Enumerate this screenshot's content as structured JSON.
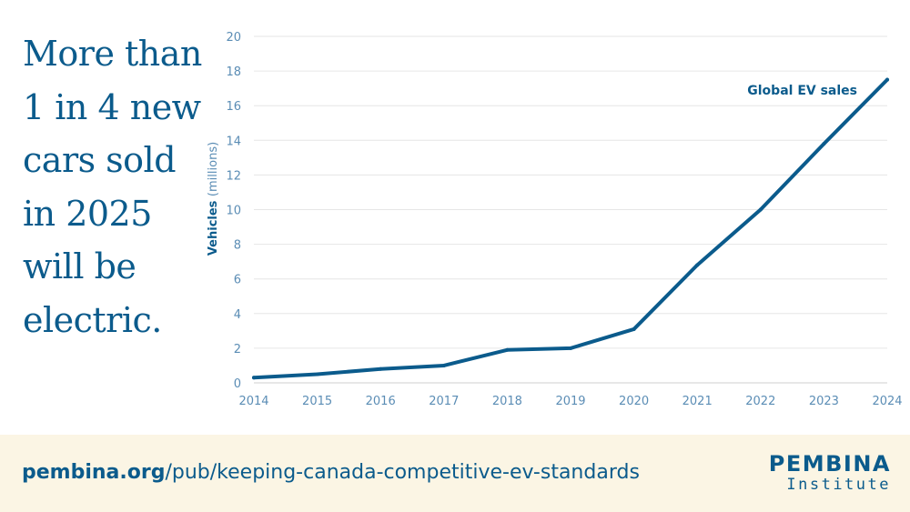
{
  "headline": "More than\n1 in 4 new\ncars sold\nin 2025\nwill be\nelectric.",
  "colors": {
    "brand": "#0b5b8c",
    "tick": "#5b8db5",
    "grid": "#e6e6e6",
    "footer_bg": "#fbf5e4"
  },
  "chart_data": {
    "type": "line",
    "x": [
      2014,
      2015,
      2016,
      2017,
      2018,
      2019,
      2020,
      2021,
      2022,
      2023,
      2024
    ],
    "series": [
      {
        "name": "Global EV sales",
        "values": [
          0.3,
          0.5,
          0.8,
          1.0,
          1.9,
          2.0,
          3.1,
          6.8,
          10.0,
          13.8,
          17.5
        ]
      }
    ],
    "ylabel_bold": "Vehicles",
    "ylabel_unit": "(millions)",
    "yticks": [
      0,
      2,
      4,
      6,
      8,
      10,
      12,
      14,
      16,
      18,
      20
    ],
    "ylim": [
      0,
      20
    ],
    "xlim": [
      2014,
      2024
    ],
    "grid": true
  },
  "footer": {
    "url_domain": "pembina.org",
    "url_path": "/pub/keeping-canada-competitive-ev-standards",
    "logo_top": "PEMBINA",
    "logo_bottom": "Institute"
  }
}
